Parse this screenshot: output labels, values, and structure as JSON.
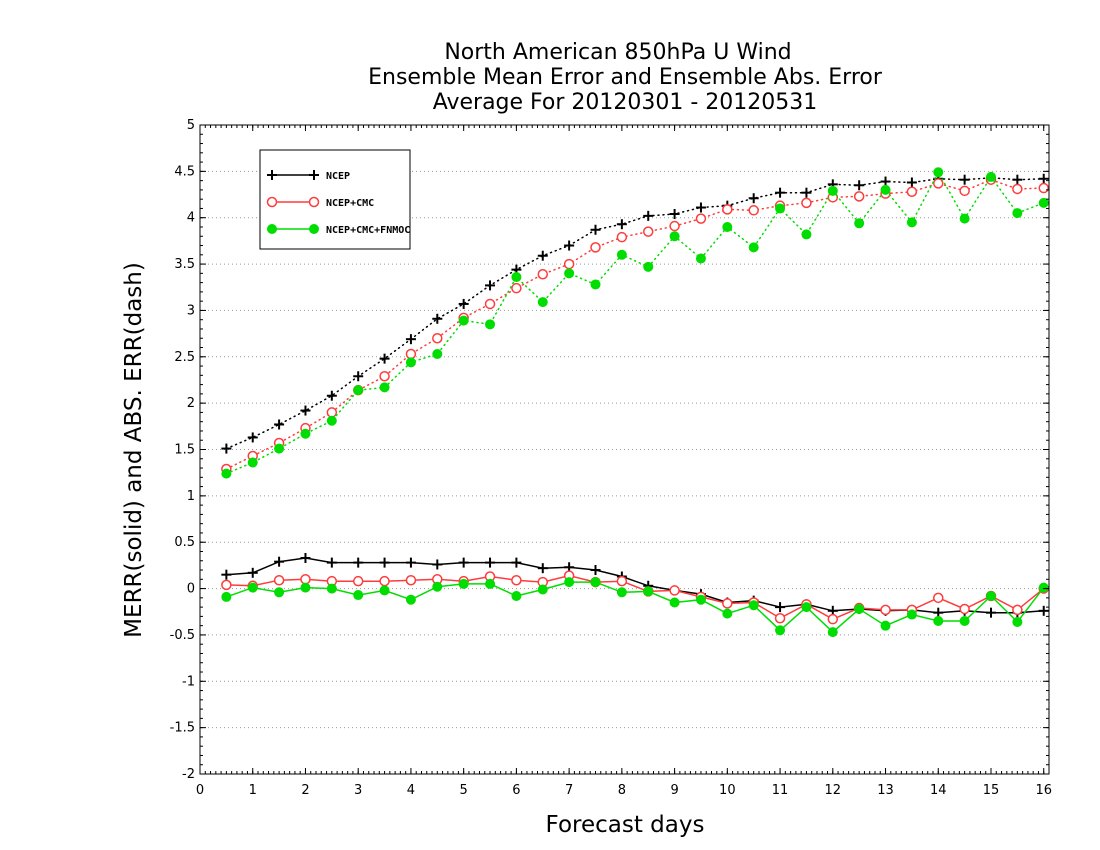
{
  "chart_data": {
    "type": "line",
    "title_lines": [
      "North American 850hPa U Wind",
      "Ensemble Mean Error and Ensemble Abs. Error",
      "Average For 20120301 - 20120531"
    ],
    "xlabel": "Forecast days",
    "ylabel": "MERR(solid) and ABS. ERR(dash)",
    "xlim": [
      0,
      16.1
    ],
    "ylim": [
      -2,
      5
    ],
    "x_ticks": [
      0,
      1,
      2,
      3,
      4,
      5,
      6,
      7,
      8,
      9,
      10,
      11,
      12,
      13,
      14,
      15,
      16
    ],
    "y_ticks": [
      5,
      4.5,
      4,
      3.5,
      3,
      2.5,
      2,
      1.5,
      1,
      0.5,
      0,
      -0.5,
      -1,
      -1.5,
      -2
    ],
    "grid": "horizontal-dotted",
    "legend_position": "top-left",
    "x": [
      0.5,
      1,
      1.5,
      2,
      2.5,
      3,
      3.5,
      4,
      4.5,
      5,
      5.5,
      6,
      6.5,
      7,
      7.5,
      8,
      8.5,
      9,
      9.5,
      10,
      10.5,
      11,
      11.5,
      12,
      12.5,
      13,
      13.5,
      14,
      14.5,
      15,
      15.5,
      16
    ],
    "series": [
      {
        "name": "NCEP",
        "color": "#000000",
        "marker": "plus",
        "abs_err": [
          1.51,
          1.63,
          1.77,
          1.92,
          2.08,
          2.29,
          2.48,
          2.69,
          2.91,
          3.07,
          3.27,
          3.44,
          3.59,
          3.7,
          3.87,
          3.93,
          4.02,
          4.04,
          4.11,
          4.13,
          4.21,
          4.27,
          4.27,
          4.36,
          4.35,
          4.39,
          4.38,
          4.42,
          4.41,
          4.43,
          4.41,
          4.42
        ],
        "mean_err": [
          0.15,
          0.17,
          0.29,
          0.33,
          0.28,
          0.28,
          0.28,
          0.28,
          0.26,
          0.28,
          0.28,
          0.28,
          0.22,
          0.23,
          0.2,
          0.13,
          0.03,
          -0.02,
          -0.06,
          -0.15,
          -0.13,
          -0.2,
          -0.17,
          -0.24,
          -0.22,
          -0.24,
          -0.23,
          -0.26,
          -0.24,
          -0.26,
          -0.26,
          -0.24
        ]
      },
      {
        "name": "NCEP+CMC",
        "color": "#ff3b3b",
        "marker": "open-circle",
        "abs_err": [
          1.29,
          1.43,
          1.57,
          1.73,
          1.9,
          2.14,
          2.29,
          2.53,
          2.7,
          2.92,
          3.07,
          3.24,
          3.39,
          3.5,
          3.68,
          3.79,
          3.85,
          3.91,
          3.99,
          4.09,
          4.08,
          4.13,
          4.16,
          4.22,
          4.23,
          4.26,
          4.28,
          4.37,
          4.29,
          4.41,
          4.31,
          4.32
        ],
        "mean_err": [
          0.04,
          0.03,
          0.09,
          0.1,
          0.08,
          0.08,
          0.08,
          0.09,
          0.1,
          0.08,
          0.13,
          0.09,
          0.07,
          0.14,
          0.07,
          0.08,
          -0.03,
          -0.02,
          -0.09,
          -0.16,
          -0.15,
          -0.32,
          -0.17,
          -0.33,
          -0.21,
          -0.23,
          -0.23,
          -0.1,
          -0.22,
          -0.08,
          -0.23,
          0.0
        ]
      },
      {
        "name": "NCEP+CMC+FNMOC",
        "color": "#00dd00",
        "marker": "filled-circle",
        "abs_err": [
          1.24,
          1.36,
          1.51,
          1.67,
          1.81,
          2.14,
          2.17,
          2.44,
          2.53,
          2.89,
          2.85,
          3.36,
          3.09,
          3.4,
          3.28,
          3.6,
          3.47,
          3.8,
          3.56,
          3.9,
          3.68,
          4.1,
          3.82,
          4.29,
          3.94,
          4.3,
          3.95,
          4.49,
          3.99,
          4.44,
          4.05,
          4.16
        ],
        "mean_err": [
          -0.09,
          0.01,
          -0.04,
          0.01,
          0.0,
          -0.07,
          -0.02,
          -0.12,
          0.02,
          0.05,
          0.05,
          -0.08,
          -0.01,
          0.07,
          0.07,
          -0.04,
          -0.03,
          -0.15,
          -0.12,
          -0.27,
          -0.18,
          -0.45,
          -0.2,
          -0.47,
          -0.22,
          -0.4,
          -0.28,
          -0.35,
          -0.35,
          -0.08,
          -0.36,
          0.01
        ]
      }
    ]
  }
}
